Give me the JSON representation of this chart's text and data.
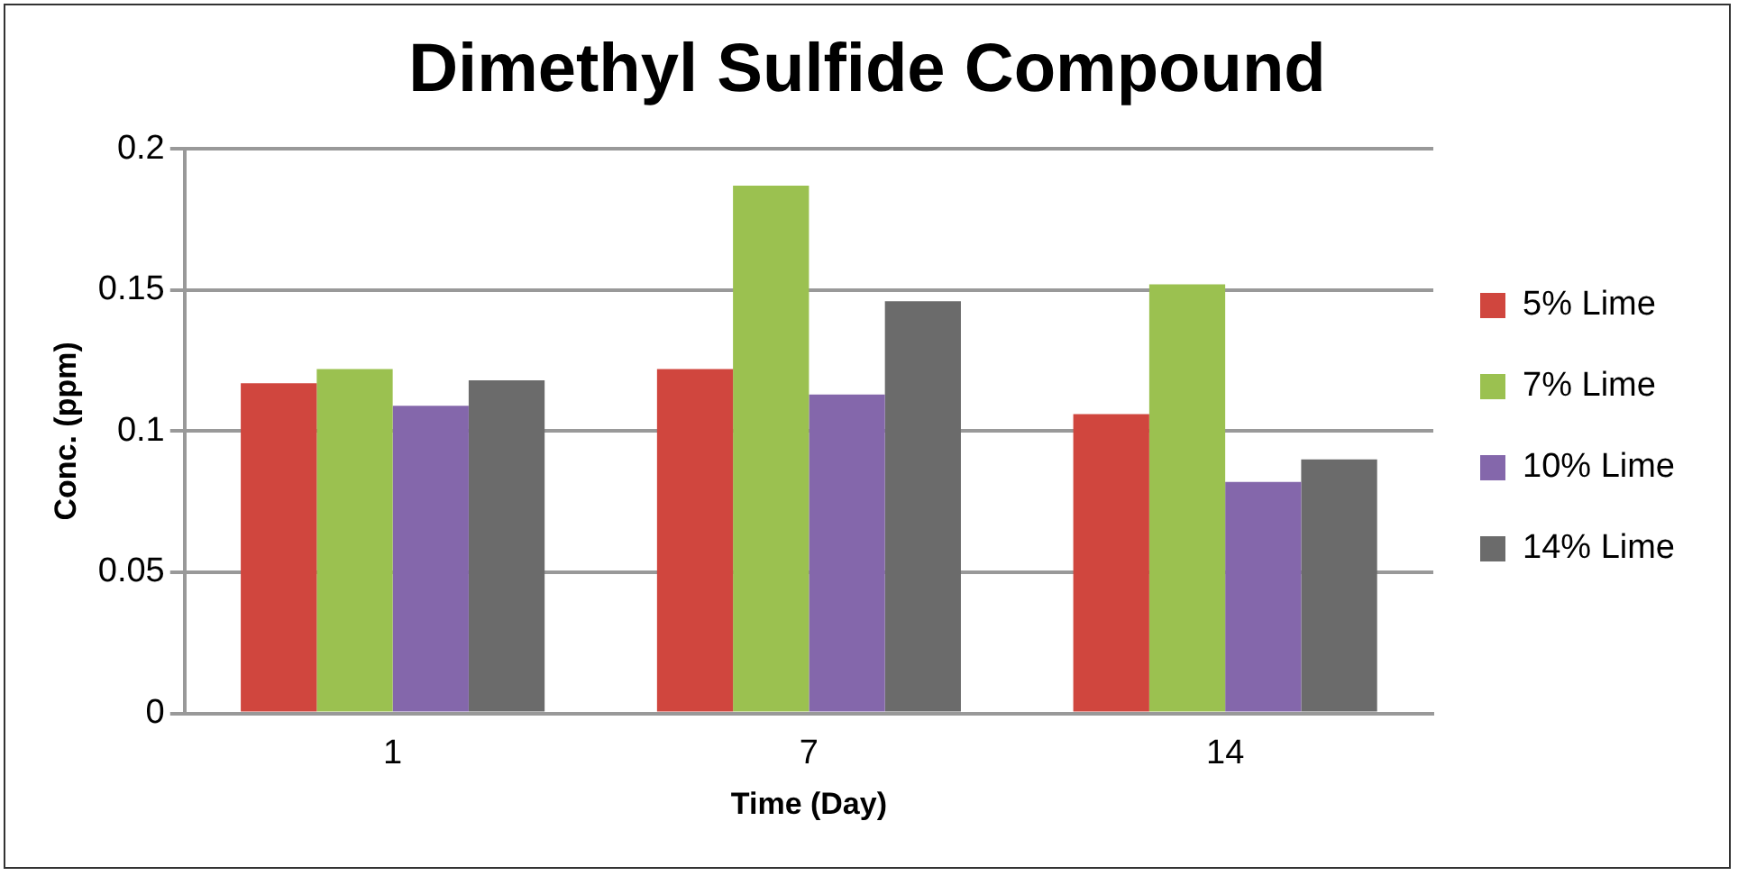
{
  "chart_data": {
    "type": "bar",
    "title": "Dimethyl Sulfide Compound",
    "xlabel": "Time (Day)",
    "ylabel": "Conc. (ppm)",
    "categories": [
      "1",
      "7",
      "14"
    ],
    "series": [
      {
        "name": "5% Lime",
        "color": "#d0463e",
        "values": [
          0.117,
          0.122,
          0.106
        ]
      },
      {
        "name": "7% Lime",
        "color": "#9bc150",
        "values": [
          0.122,
          0.187,
          0.152
        ]
      },
      {
        "name": "10% Lime",
        "color": "#8467ab",
        "values": [
          0.109,
          0.113,
          0.082
        ]
      },
      {
        "name": "14% Lime",
        "color": "#6b6b6b",
        "values": [
          0.118,
          0.146,
          0.09
        ]
      }
    ],
    "ylim": [
      0,
      0.2
    ],
    "yticks": [
      0,
      0.05,
      0.1,
      0.15,
      0.2
    ],
    "grid": "y",
    "legend": "right"
  }
}
